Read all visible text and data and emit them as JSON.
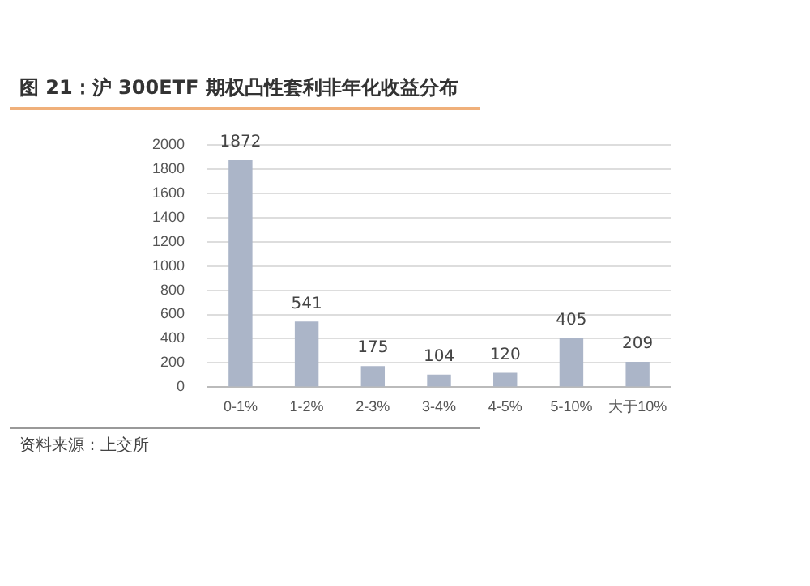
{
  "chart_data": {
    "type": "bar",
    "title": "图 21：沪 300ETF 期权凸性套利非年化收益分布",
    "categories": [
      "0-1%",
      "1-2%",
      "2-3%",
      "3-4%",
      "4-5%",
      "5-10%",
      "大于10%"
    ],
    "values": [
      1872,
      541,
      175,
      104,
      120,
      405,
      209
    ],
    "color": "#abb5c8",
    "ylim": [
      0,
      2000
    ],
    "yticks": [
      0,
      200,
      400,
      600,
      800,
      1000,
      1200,
      1400,
      1600,
      1800,
      2000
    ],
    "grid": "y",
    "data_labels": true,
    "annotations": [
      "资料来源：上交所"
    ]
  }
}
